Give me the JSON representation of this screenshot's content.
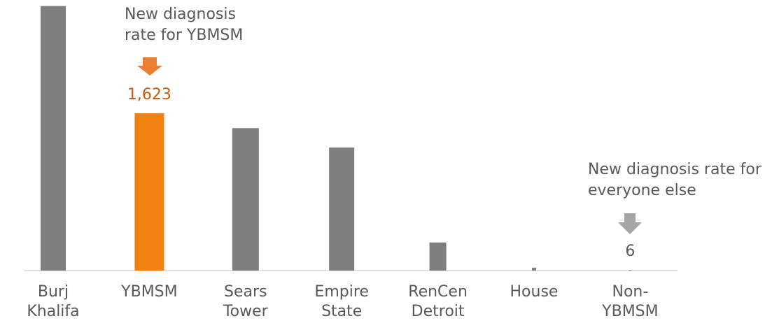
{
  "chart_data": {
    "type": "bar",
    "categories": [
      "Burj Khalifa",
      "YBMSM",
      "Sears Tower",
      "Empire State",
      "RenCen Detroit",
      "House",
      "Non-YBMSM"
    ],
    "values": [
      2730,
      1623,
      1470,
      1270,
      290,
      30,
      6
    ],
    "value_labels": [
      null,
      "1,623",
      null,
      null,
      null,
      null,
      "6"
    ],
    "colors": [
      "#7f7f7f",
      "#f0800f",
      "#7f7f7f",
      "#7f7f7f",
      "#7f7f7f",
      "#7f7f7f",
      "#7f7f7f"
    ],
    "label_colors": [
      null,
      "#c55a11",
      null,
      null,
      null,
      null,
      "#595959"
    ],
    "annotations": [
      "New diagnosis rate for YBMSM",
      "New diagnosis rate for everyone else"
    ]
  }
}
